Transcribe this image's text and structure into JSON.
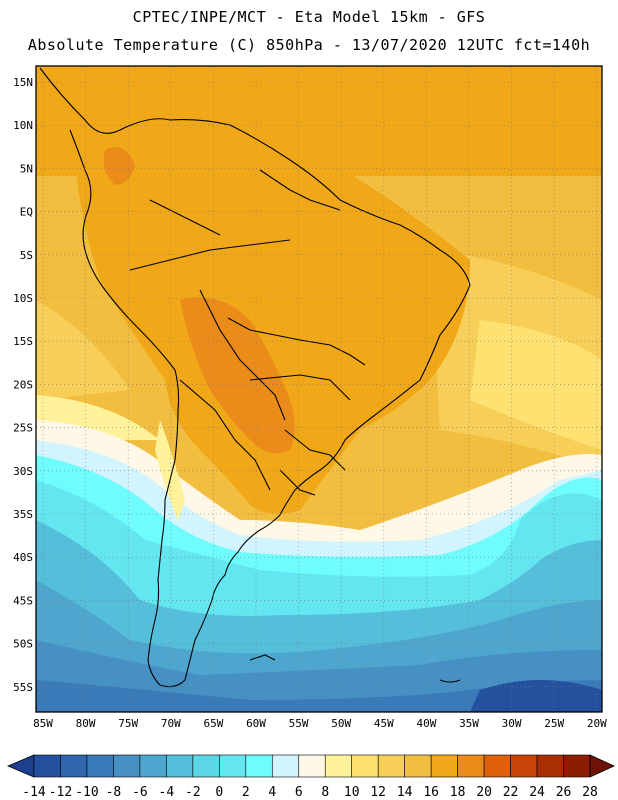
{
  "header": {
    "line1": "CPTEC/INPE/MCT -  Eta Model 15km - GFS",
    "line2": "Absolute Temperature (C) 850hPa - 13/07/2020 12UTC fct=140h"
  },
  "map": {
    "lat_labels": [
      "15N",
      "10N",
      "5N",
      "EQ",
      "5S",
      "10S",
      "15S",
      "20S",
      "25S",
      "30S",
      "35S",
      "40S",
      "45S",
      "50S",
      "55S"
    ],
    "lon_labels": [
      "85W",
      "80W",
      "75W",
      "70W",
      "65W",
      "60W",
      "55W",
      "50W",
      "45W",
      "40W",
      "35W",
      "30W",
      "25W",
      "20W"
    ]
  },
  "colorbar": {
    "labels": [
      "-14",
      "-12",
      "-10",
      "-8",
      "-6",
      "-4",
      "-2",
      "0",
      "2",
      "4",
      "6",
      "8",
      "10",
      "12",
      "14",
      "16",
      "18",
      "20",
      "22",
      "24",
      "26",
      "28"
    ],
    "colors": [
      "#1c3f8f",
      "#24519e",
      "#2f66ad",
      "#3b7ab9",
      "#4690c3",
      "#4ea6cf",
      "#55bfdb",
      "#5dd6e6",
      "#64e6f0",
      "#6efcfc",
      "#d2f4ff",
      "#fff8e6",
      "#fff29a",
      "#fde272",
      "#f7cf58",
      "#f2be40",
      "#f0a818",
      "#ea8b1a",
      "#de6009",
      "#c84406",
      "#a82e04",
      "#8c1d02",
      "#6e1206"
    ]
  }
}
